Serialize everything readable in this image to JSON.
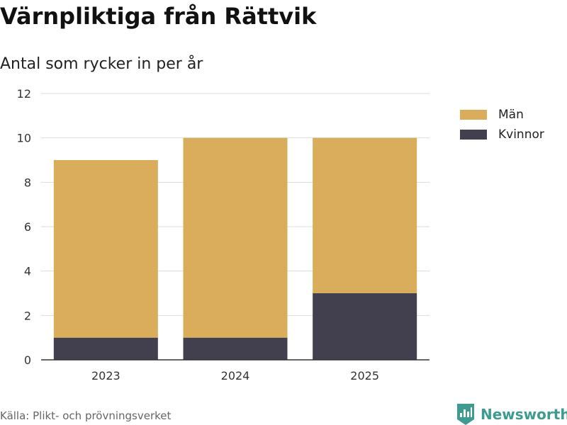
{
  "title": "Värnpliktiga från Rättvik",
  "subtitle": "Antal som rycker in per år",
  "source": "Källa: Plikt- och prövningsverket",
  "brand": {
    "name": "Newsworthy",
    "color": "#3d9b8f",
    "icon": "newsworthy-logo-icon"
  },
  "colors": {
    "Män": "#d9ad5b",
    "Kvinnor": "#42404e",
    "grid": "#dddddd",
    "axis": "#333333"
  },
  "legend": [
    {
      "label": "Män",
      "color": "#d9ad5b"
    },
    {
      "label": "Kvinnor",
      "color": "#42404e"
    }
  ],
  "chart_data": {
    "type": "bar",
    "stacked": true,
    "categories": [
      "2023",
      "2024",
      "2025"
    ],
    "series": [
      {
        "name": "Kvinnor",
        "values": [
          1,
          1,
          3
        ]
      },
      {
        "name": "Män",
        "values": [
          8,
          9,
          7
        ]
      }
    ],
    "title": "Värnpliktiga från Rättvik",
    "subtitle": "Antal som rycker in per år",
    "ylim": [
      0,
      12
    ],
    "yticks": [
      0,
      2,
      4,
      6,
      8,
      10,
      12
    ],
    "grid": true,
    "legend_position": "top-right"
  }
}
